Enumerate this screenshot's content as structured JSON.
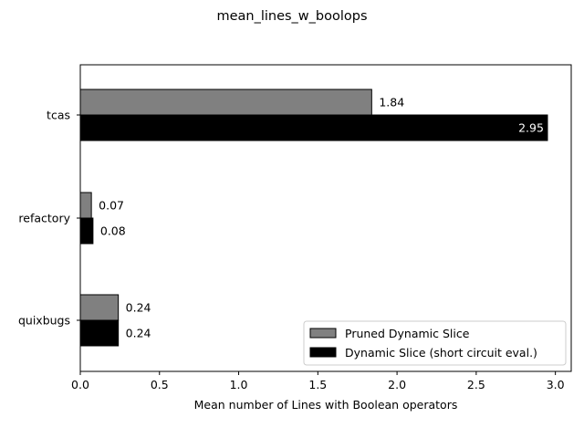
{
  "chart_data": {
    "type": "bar",
    "orientation": "horizontal",
    "title": "mean_lines_w_boolops",
    "xlabel": "Mean number of Lines with Boolean operators",
    "ylabel": "",
    "categories": [
      "tcas",
      "refactory",
      "quixbugs"
    ],
    "series": [
      {
        "name": "Pruned Dynamic Slice",
        "values": [
          1.84,
          0.07,
          0.24
        ],
        "labels": [
          "1.84",
          "0.07",
          "0.24"
        ],
        "color": "#808080"
      },
      {
        "name": "Dynamic Slice (short circuit eval.)",
        "values": [
          2.95,
          0.08,
          0.24
        ],
        "labels": [
          "2.95",
          "0.08",
          "0.24"
        ],
        "color": "#000000"
      }
    ],
    "xlim": [
      0,
      3.1
    ],
    "xticks": [
      "0.0",
      "0.5",
      "1.0",
      "1.5",
      "2.0",
      "2.5",
      "3.0"
    ],
    "grid": false,
    "legend_position": "bottom-right"
  }
}
